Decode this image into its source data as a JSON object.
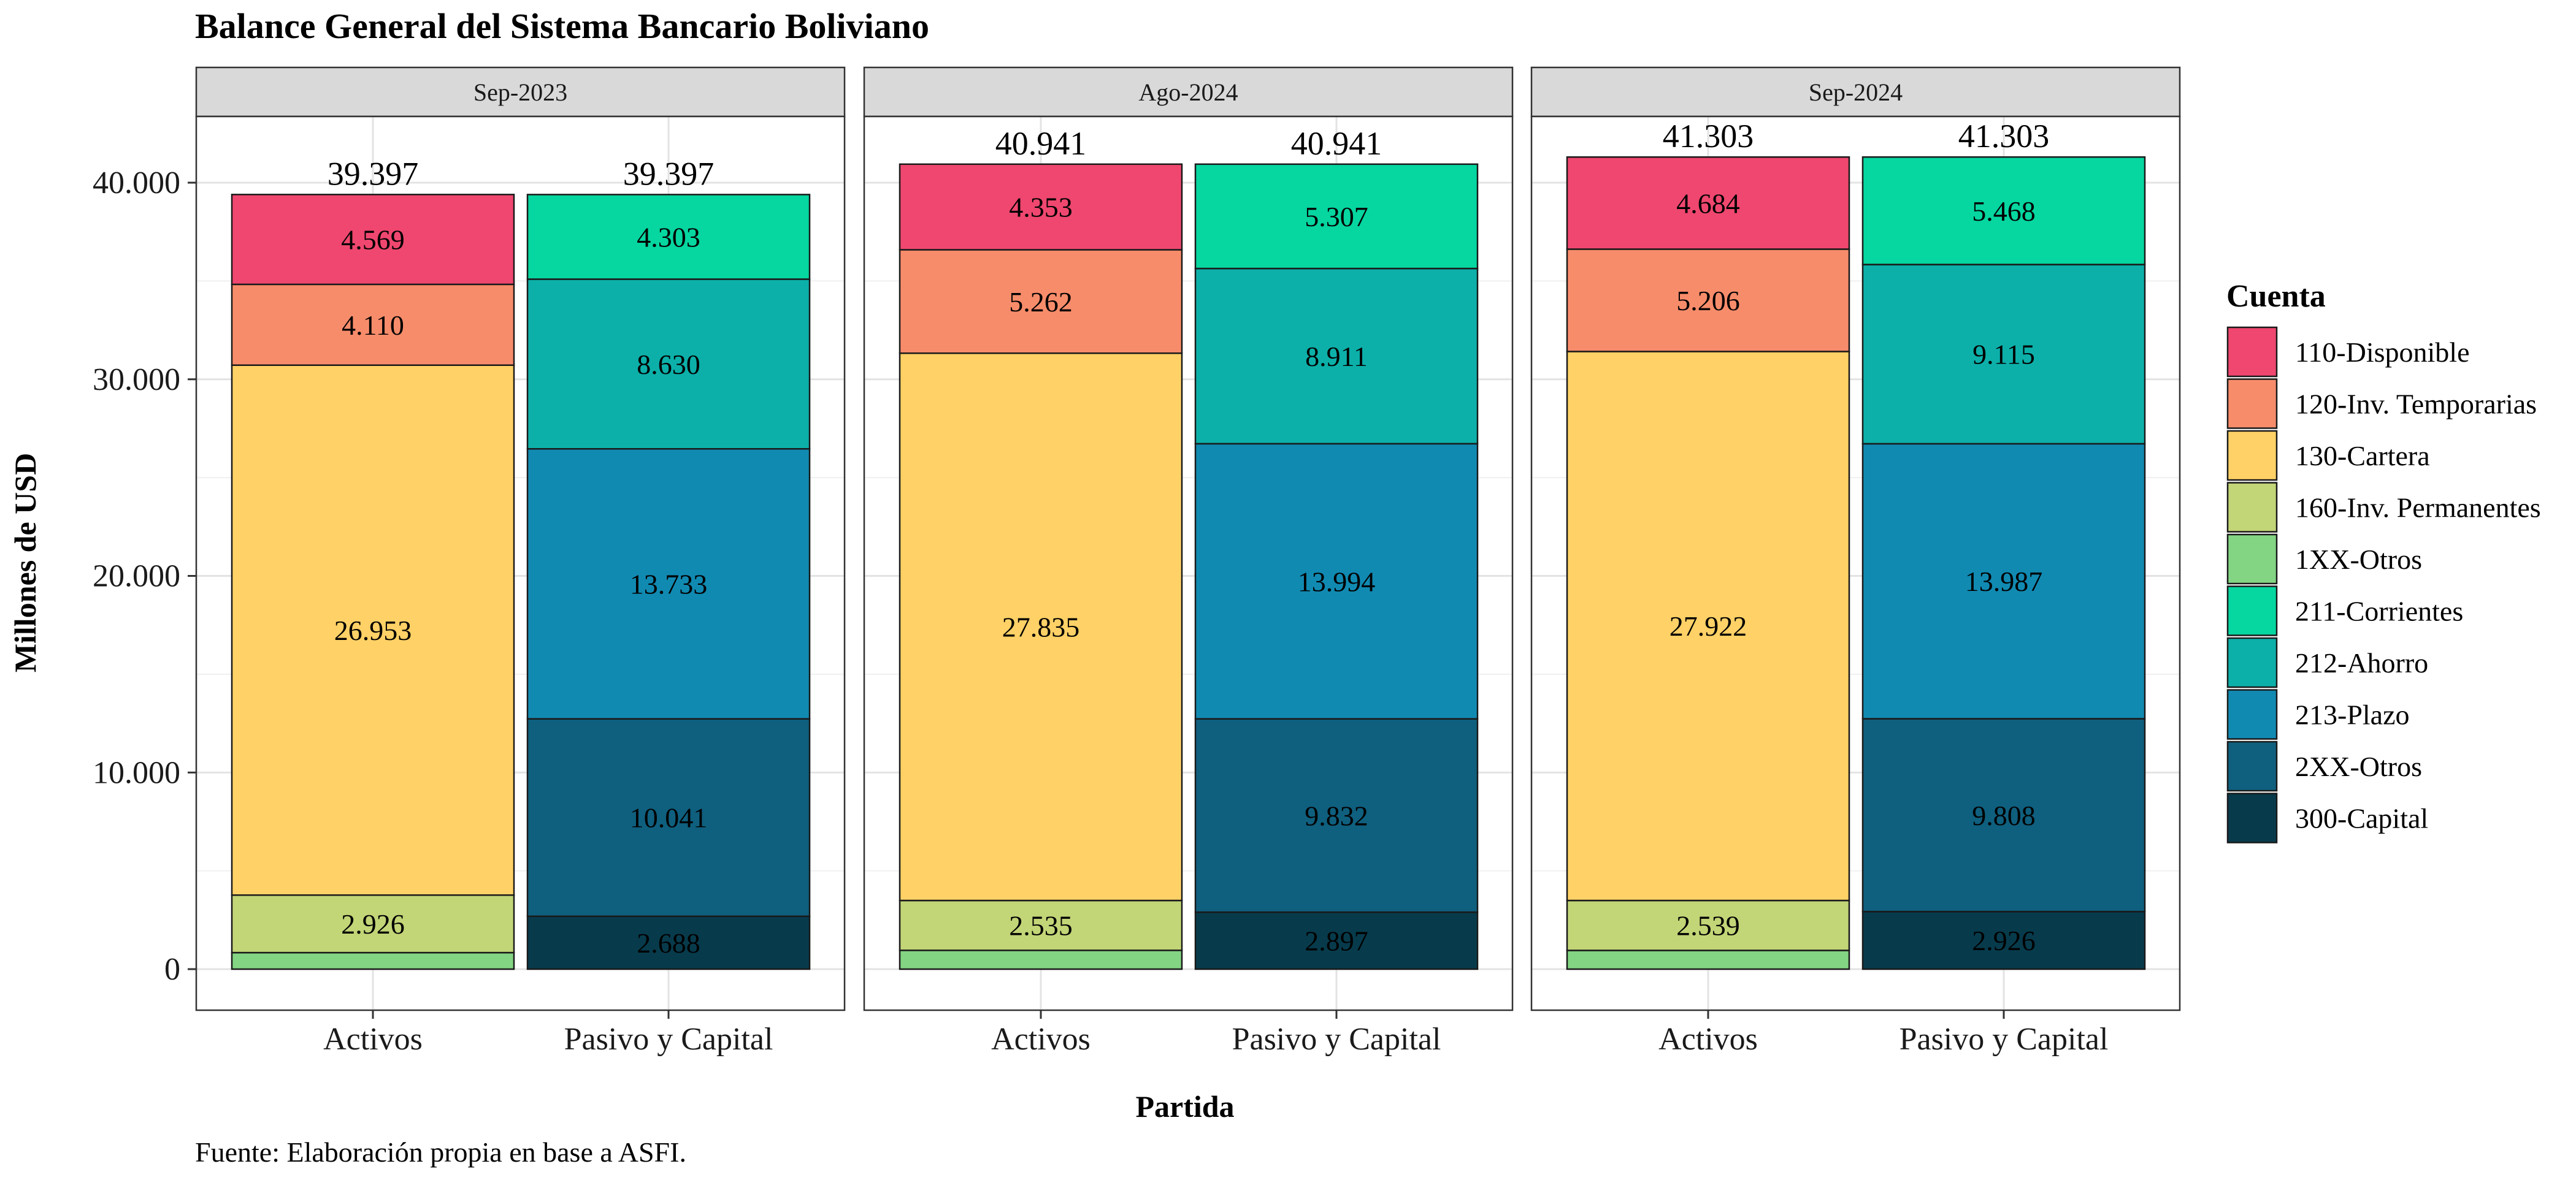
{
  "chart_data": {
    "type": "bar",
    "stacked": true,
    "title": "Balance General del Sistema Bancario Boliviano",
    "xlabel": "Partida",
    "ylabel": "Millones de USD",
    "caption": "Fuente: Elaboración propia en base a ASFI.",
    "ylim": [
      0,
      44000
    ],
    "yticks": [
      0,
      10000,
      20000,
      30000,
      40000
    ],
    "ytick_labels": [
      "0",
      "10.000",
      "20.000",
      "30.000",
      "40.000"
    ],
    "categories": [
      "Activos",
      "Pasivo y Capital"
    ],
    "grid": true,
    "legend": {
      "title": "Cuenta",
      "position": "right",
      "items": [
        {
          "name": "110-Disponible",
          "color": "#EF476F"
        },
        {
          "name": "120-Inv. Temporarias",
          "color": "#F78C6B"
        },
        {
          "name": "130-Cartera",
          "color": "#FFD166"
        },
        {
          "name": "160-Inv. Permanentes",
          "color": "#C2D577"
        },
        {
          "name": "1XX-Otros",
          "color": "#83D483"
        },
        {
          "name": "211-Corrientes",
          "color": "#06D6A0"
        },
        {
          "name": "212-Ahorro",
          "color": "#0CB0A9"
        },
        {
          "name": "213-Plazo",
          "color": "#118AB2"
        },
        {
          "name": "2XX-Otros",
          "color": "#0F5F7E"
        },
        {
          "name": "300-Capital",
          "color": "#073B4C"
        }
      ]
    },
    "panels": [
      {
        "name": "Sep-2023",
        "bars": [
          {
            "category": "Activos",
            "total": 39397,
            "total_label": "39.397",
            "segments": [
              {
                "cuenta": "1XX-Otros",
                "value": 839,
                "label": ""
              },
              {
                "cuenta": "160-Inv. Permanentes",
                "value": 2926,
                "label": "2.926"
              },
              {
                "cuenta": "130-Cartera",
                "value": 26953,
                "label": "26.953"
              },
              {
                "cuenta": "120-Inv. Temporarias",
                "value": 4110,
                "label": "4.110"
              },
              {
                "cuenta": "110-Disponible",
                "value": 4569,
                "label": "4.569"
              }
            ]
          },
          {
            "category": "Pasivo y Capital",
            "total": 39397,
            "total_label": "39.397",
            "segments": [
              {
                "cuenta": "300-Capital",
                "value": 2688,
                "label": "2.688"
              },
              {
                "cuenta": "2XX-Otros",
                "value": 10041,
                "label": "10.041"
              },
              {
                "cuenta": "213-Plazo",
                "value": 13733,
                "label": "13.733"
              },
              {
                "cuenta": "212-Ahorro",
                "value": 8630,
                "label": "8.630"
              },
              {
                "cuenta": "211-Corrientes",
                "value": 4303,
                "label": "4.303"
              }
            ]
          }
        ]
      },
      {
        "name": "Ago-2024",
        "bars": [
          {
            "category": "Activos",
            "total": 40941,
            "total_label": "40.941",
            "segments": [
              {
                "cuenta": "1XX-Otros",
                "value": 956,
                "label": ""
              },
              {
                "cuenta": "160-Inv. Permanentes",
                "value": 2535,
                "label": "2.535"
              },
              {
                "cuenta": "130-Cartera",
                "value": 27835,
                "label": "27.835"
              },
              {
                "cuenta": "120-Inv. Temporarias",
                "value": 5262,
                "label": "5.262"
              },
              {
                "cuenta": "110-Disponible",
                "value": 4353,
                "label": "4.353"
              }
            ]
          },
          {
            "category": "Pasivo y Capital",
            "total": 40941,
            "total_label": "40.941",
            "segments": [
              {
                "cuenta": "300-Capital",
                "value": 2897,
                "label": "2.897"
              },
              {
                "cuenta": "2XX-Otros",
                "value": 9832,
                "label": "9.832"
              },
              {
                "cuenta": "213-Plazo",
                "value": 13994,
                "label": "13.994"
              },
              {
                "cuenta": "212-Ahorro",
                "value": 8911,
                "label": "8.911"
              },
              {
                "cuenta": "211-Corrientes",
                "value": 5307,
                "label": "5.307"
              }
            ]
          }
        ]
      },
      {
        "name": "Sep-2024",
        "bars": [
          {
            "category": "Activos",
            "total": 41303,
            "total_label": "41.303",
            "segments": [
              {
                "cuenta": "1XX-Otros",
                "value": 952,
                "label": ""
              },
              {
                "cuenta": "160-Inv. Permanentes",
                "value": 2539,
                "label": "2.539"
              },
              {
                "cuenta": "130-Cartera",
                "value": 27922,
                "label": "27.922"
              },
              {
                "cuenta": "120-Inv. Temporarias",
                "value": 5206,
                "label": "5.206"
              },
              {
                "cuenta": "110-Disponible",
                "value": 4684,
                "label": "4.684"
              }
            ]
          },
          {
            "category": "Pasivo y Capital",
            "total": 41303,
            "total_label": "41.303",
            "segments": [
              {
                "cuenta": "300-Capital",
                "value": 2926,
                "label": "2.926"
              },
              {
                "cuenta": "2XX-Otros",
                "value": 9808,
                "label": "9.808"
              },
              {
                "cuenta": "213-Plazo",
                "value": 13987,
                "label": "13.987"
              },
              {
                "cuenta": "212-Ahorro",
                "value": 9115,
                "label": "9.115"
              },
              {
                "cuenta": "211-Corrientes",
                "value": 5468,
                "label": "5.468"
              }
            ]
          }
        ]
      }
    ]
  }
}
